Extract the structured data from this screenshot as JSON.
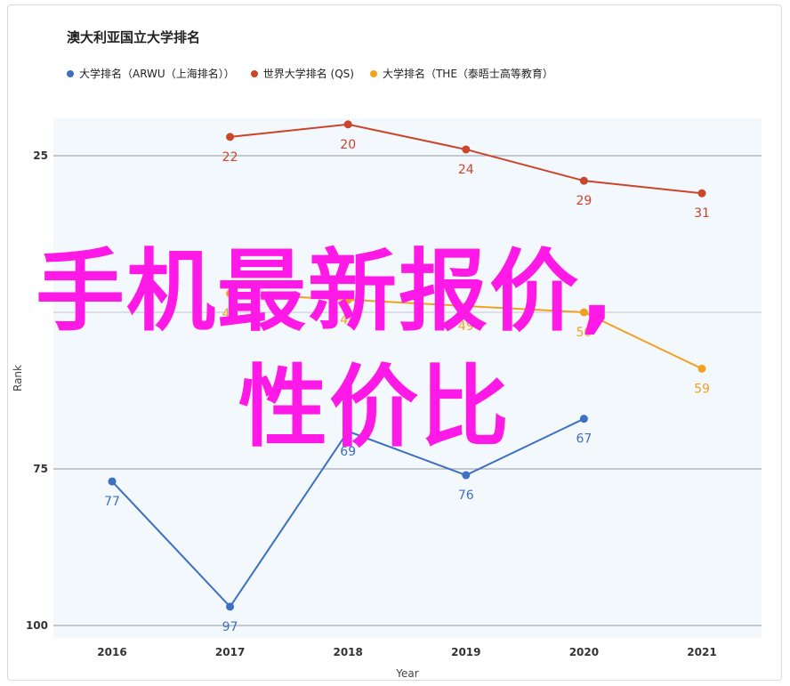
{
  "chart_data": {
    "type": "line",
    "title": "澳大利亚国立大学排名",
    "xlabel": "Year",
    "ylabel": "Rank",
    "x": [
      2016,
      2017,
      2018,
      2019,
      2020,
      2021
    ],
    "ylim": [
      14,
      100
    ],
    "y_inverted": true,
    "y_ticks": [
      25,
      75,
      100
    ],
    "grid": true,
    "legend_position": "top",
    "series": [
      {
        "name": "大学排名（ARWU（上海排名））",
        "color": "#3d6fc2",
        "values": [
          77,
          97,
          69,
          76,
          67,
          null
        ]
      },
      {
        "name": "世界大学排名 (QS)",
        "color": "#c9452b",
        "values": [
          null,
          22,
          20,
          24,
          29,
          31
        ]
      },
      {
        "name": "大学排名（THE（泰晤士高等教育）",
        "color": "#f2a11f",
        "values": [
          null,
          47,
          48,
          49,
          50,
          59
        ]
      }
    ]
  },
  "overlay": {
    "line1": "手机最新报价,",
    "line2": "性价比",
    "color": "#ff19e6"
  }
}
